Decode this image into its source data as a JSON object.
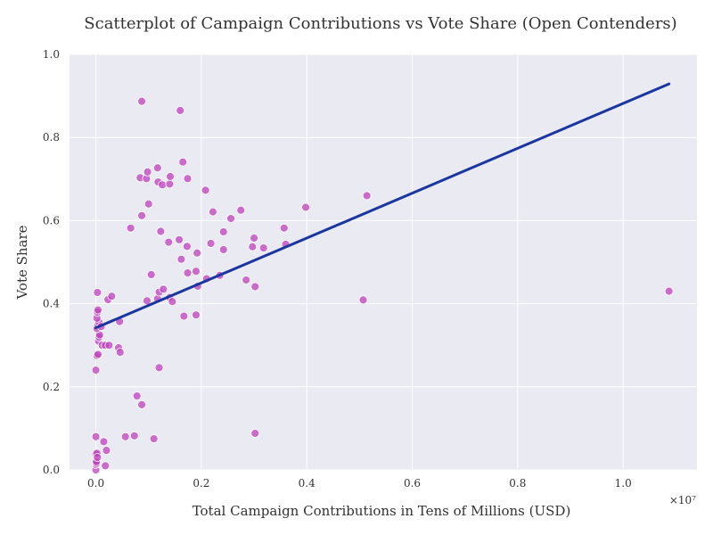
{
  "chart_data": {
    "type": "scatter",
    "title": "Scatterplot of Campaign Contributions vs Vote Share (Open Contenders)",
    "xlabel": "Total Campaign Contributions in Tens of Millions (USD)",
    "ylabel": "Vote Share",
    "x_offset_label": "×10⁷",
    "xlim": [
      -0.05,
      1.14
    ],
    "ylim": [
      0.0,
      1.0
    ],
    "x_ticks": [
      0.0,
      0.2,
      0.4,
      0.6,
      0.8,
      1.0
    ],
    "x_tick_labels": [
      "0.0",
      "0.2",
      "0.4",
      "0.6",
      "0.8",
      "1.0"
    ],
    "y_ticks": [
      0.0,
      0.2,
      0.4,
      0.6,
      0.8,
      1.0
    ],
    "y_tick_labels": [
      "0.0",
      "0.2",
      "0.4",
      "0.6",
      "0.8",
      "1.0"
    ],
    "grid": true,
    "background_color": "#eaeaf2",
    "grid_color": "#ffffff",
    "point_color": "#bf40bf",
    "line_color": "#1a36a0",
    "trend_line": {
      "x": [
        0.0,
        1.087
      ],
      "y": [
        0.342,
        0.929
      ]
    },
    "points": [
      [
        0.0,
        0.0
      ],
      [
        0.0,
        0.013
      ],
      [
        0.001,
        0.016
      ],
      [
        0.001,
        0.02
      ],
      [
        0.0,
        0.038
      ],
      [
        0.002,
        0.04
      ],
      [
        0.003,
        0.03
      ],
      [
        0.0,
        0.08
      ],
      [
        0.015,
        0.068
      ],
      [
        0.018,
        0.01
      ],
      [
        0.02,
        0.047
      ],
      [
        0.0,
        0.24
      ],
      [
        0.002,
        0.275
      ],
      [
        0.004,
        0.278
      ],
      [
        0.005,
        0.31
      ],
      [
        0.006,
        0.32
      ],
      [
        0.007,
        0.325
      ],
      [
        0.012,
        0.3
      ],
      [
        0.018,
        0.3
      ],
      [
        0.025,
        0.3
      ],
      [
        0.002,
        0.34
      ],
      [
        0.004,
        0.35
      ],
      [
        0.006,
        0.355
      ],
      [
        0.002,
        0.365
      ],
      [
        0.003,
        0.38
      ],
      [
        0.004,
        0.385
      ],
      [
        0.01,
        0.345
      ],
      [
        0.003,
        0.427
      ],
      [
        0.043,
        0.294
      ],
      [
        0.046,
        0.283
      ],
      [
        0.045,
        0.357
      ],
      [
        0.023,
        0.41
      ],
      [
        0.03,
        0.418
      ],
      [
        0.056,
        0.08
      ],
      [
        0.073,
        0.082
      ],
      [
        0.078,
        0.178
      ],
      [
        0.087,
        0.157
      ],
      [
        0.11,
        0.075
      ],
      [
        0.12,
        0.246
      ],
      [
        0.097,
        0.407
      ],
      [
        0.117,
        0.412
      ],
      [
        0.12,
        0.428
      ],
      [
        0.128,
        0.435
      ],
      [
        0.14,
        0.415
      ],
      [
        0.145,
        0.405
      ],
      [
        0.105,
        0.47
      ],
      [
        0.123,
        0.574
      ],
      [
        0.138,
        0.548
      ],
      [
        0.158,
        0.554
      ],
      [
        0.066,
        0.582
      ],
      [
        0.087,
        0.612
      ],
      [
        0.1,
        0.64
      ],
      [
        0.084,
        0.703
      ],
      [
        0.096,
        0.701
      ],
      [
        0.098,
        0.717
      ],
      [
        0.117,
        0.727
      ],
      [
        0.118,
        0.693
      ],
      [
        0.126,
        0.686
      ],
      [
        0.14,
        0.688
      ],
      [
        0.141,
        0.706
      ],
      [
        0.165,
        0.741
      ],
      [
        0.174,
        0.701
      ],
      [
        0.087,
        0.887
      ],
      [
        0.16,
        0.865
      ],
      [
        0.162,
        0.507
      ],
      [
        0.173,
        0.538
      ],
      [
        0.174,
        0.474
      ],
      [
        0.19,
        0.478
      ],
      [
        0.192,
        0.522
      ],
      [
        0.193,
        0.442
      ],
      [
        0.167,
        0.37
      ],
      [
        0.19,
        0.373
      ],
      [
        0.208,
        0.673
      ],
      [
        0.21,
        0.46
      ],
      [
        0.218,
        0.545
      ],
      [
        0.222,
        0.621
      ],
      [
        0.235,
        0.468
      ],
      [
        0.242,
        0.573
      ],
      [
        0.242,
        0.53
      ],
      [
        0.256,
        0.605
      ],
      [
        0.275,
        0.625
      ],
      [
        0.285,
        0.457
      ],
      [
        0.297,
        0.537
      ],
      [
        0.3,
        0.558
      ],
      [
        0.302,
        0.441
      ],
      [
        0.302,
        0.088
      ],
      [
        0.318,
        0.534
      ],
      [
        0.357,
        0.582
      ],
      [
        0.36,
        0.543
      ],
      [
        0.398,
        0.632
      ],
      [
        0.507,
        0.409
      ],
      [
        0.514,
        0.66
      ],
      [
        1.087,
        0.43
      ]
    ]
  }
}
